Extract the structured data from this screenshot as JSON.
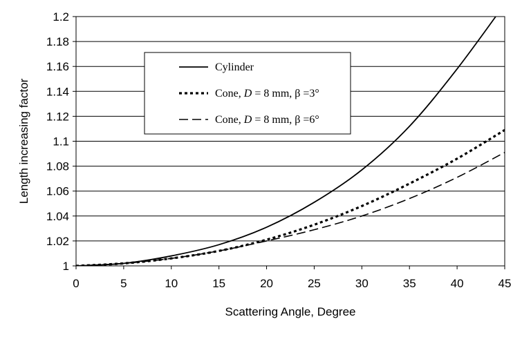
{
  "chart_data": {
    "type": "line",
    "title": "",
    "xlabel": "Scattering Angle, Degree",
    "ylabel": "Length increasing factor",
    "xlim": [
      0,
      45
    ],
    "ylim": [
      1,
      1.2
    ],
    "x_ticks": [
      "0",
      "5",
      "10",
      "15",
      "20",
      "25",
      "30",
      "35",
      "40",
      "45"
    ],
    "y_ticks": [
      "1",
      "1.02",
      "1.04",
      "1.06",
      "1.08",
      "1.1",
      "1.12",
      "1.14",
      "1.16",
      "1.18",
      "1.2"
    ],
    "grid": "horizontal",
    "legend": "upper-left inside",
    "series": [
      {
        "name": "Cylinder",
        "style": "solid",
        "x": [
          0,
          5,
          10,
          15,
          20,
          25,
          30,
          35,
          40,
          45
        ],
        "y": [
          1.0,
          1.002,
          1.008,
          1.017,
          1.031,
          1.051,
          1.077,
          1.112,
          1.158,
          1.21
        ]
      },
      {
        "name_parts": [
          "Cone, ",
          "D",
          " = 8 mm, β =3°"
        ],
        "style": "dotted",
        "x": [
          0,
          5,
          10,
          15,
          20,
          25,
          30,
          35,
          40,
          45
        ],
        "y": [
          1.0,
          1.002,
          1.006,
          1.012,
          1.021,
          1.033,
          1.048,
          1.066,
          1.086,
          1.109
        ]
      },
      {
        "name_parts": [
          "Cone, ",
          "D",
          " = 8 mm, β =6°"
        ],
        "style": "dashed",
        "x": [
          0,
          5,
          10,
          15,
          20,
          25,
          30,
          35,
          40,
          45
        ],
        "y": [
          1.0,
          1.002,
          1.006,
          1.012,
          1.02,
          1.029,
          1.04,
          1.054,
          1.071,
          1.091
        ]
      }
    ]
  }
}
